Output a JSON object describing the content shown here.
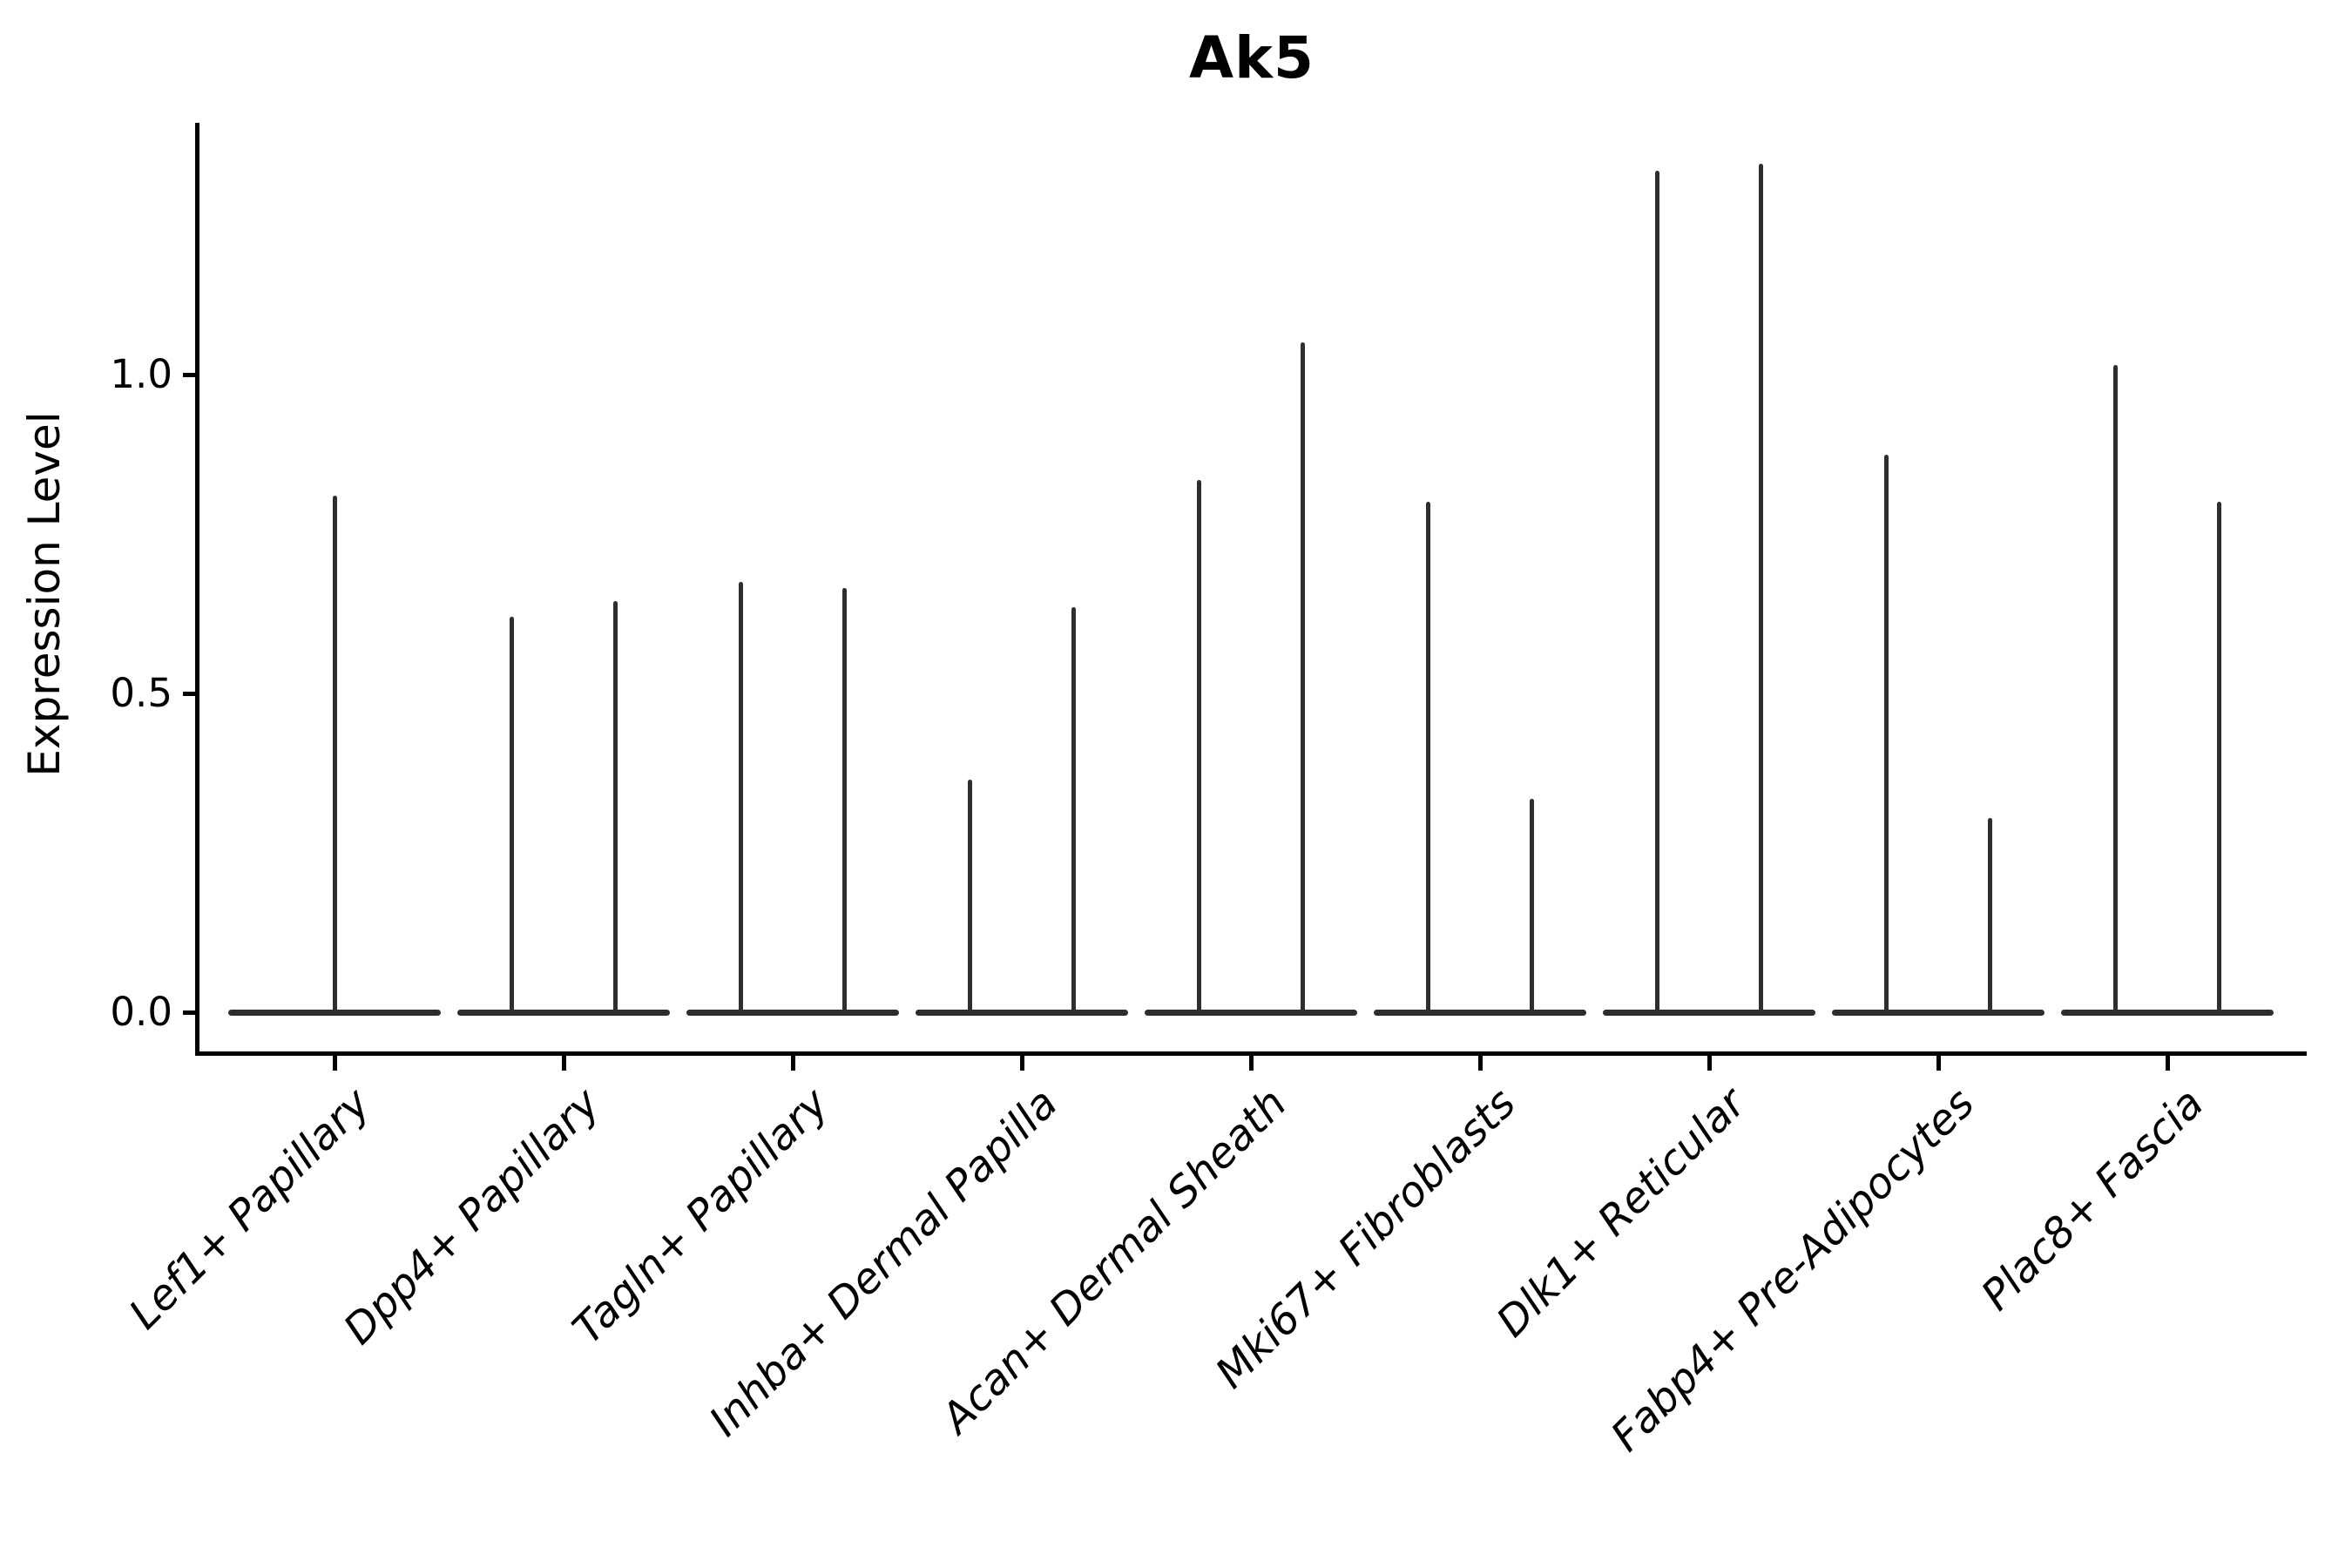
{
  "chart_data": {
    "type": "violin",
    "title": "Ak5",
    "ylabel": "Expression Level",
    "xlabel": "",
    "legend_position": "none",
    "grid": false,
    "background_color": "#ffffff",
    "ink_color": "#2d2d2d",
    "ylim": [
      -0.07,
      1.39
    ],
    "yticks": [
      {
        "value": 0.0,
        "label": "0.0"
      },
      {
        "value": 0.5,
        "label": "0.5"
      },
      {
        "value": 1.0,
        "label": "1.0"
      }
    ],
    "description": "Violin plot of Ak5 expression; each violin is collapsed at 0 with a thin spike to its maximum expression value.",
    "groups": [
      {
        "label": "Lef1+ Papillary",
        "spike_maxima": [
          0.81
        ]
      },
      {
        "label": "Dpp4+ Papillary",
        "spike_maxima": [
          0.62,
          0.645
        ]
      },
      {
        "label": "Tagln+ Papillary",
        "spike_maxima": [
          0.675,
          0.665
        ]
      },
      {
        "label": "Inhba+ Dermal Papilla",
        "spike_maxima": [
          0.365,
          0.635
        ]
      },
      {
        "label": "Acan+ Dermal Sheath",
        "spike_maxima": [
          0.835,
          1.05
        ]
      },
      {
        "label": "Mki67+ Fibroblasts",
        "spike_maxima": [
          0.8,
          0.335
        ]
      },
      {
        "label": "Dlk1+ Reticular",
        "spike_maxima": [
          1.32,
          1.33
        ]
      },
      {
        "label": "Fabp4+ Pre-Adipocytes",
        "spike_maxima": [
          0.875,
          0.305
        ]
      },
      {
        "label": "Plac8+ Fascia",
        "spike_maxima": [
          1.015,
          0.8
        ]
      }
    ]
  }
}
